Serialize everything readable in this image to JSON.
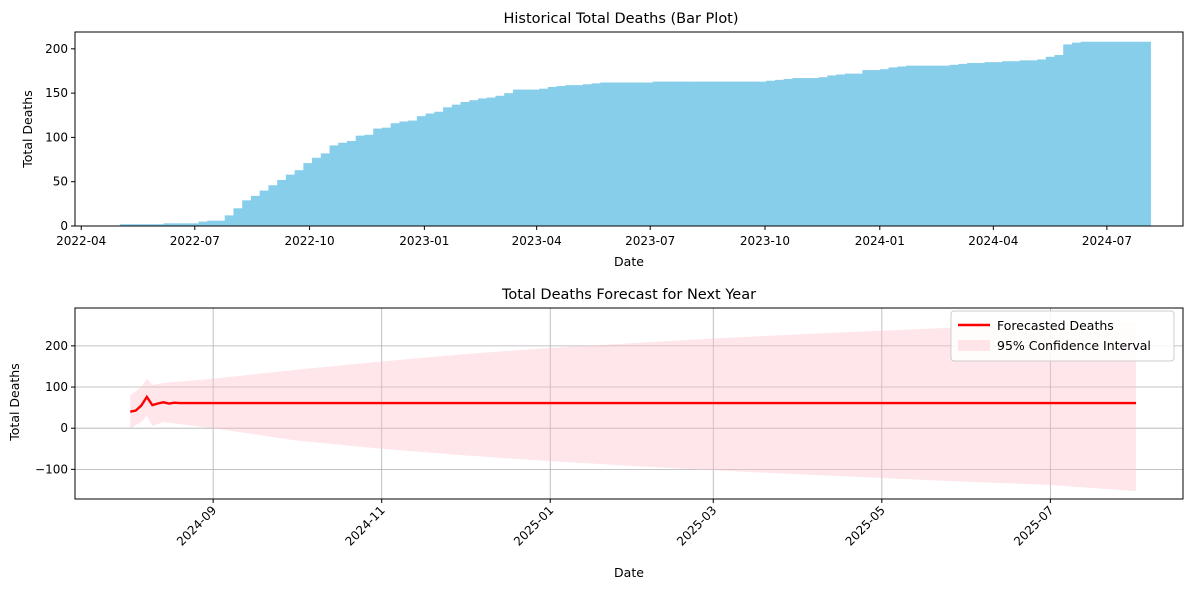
{
  "colors": {
    "bars": "#87ceeb",
    "forecast_line": "#ff0000",
    "confidence_band": "#ffc0cb",
    "grid": "#b0b0b0",
    "axes": "#000000"
  },
  "chart_data": [
    {
      "type": "bar",
      "title": "Historical Total Deaths (Bar Plot)",
      "xlabel": "Date",
      "ylabel": "Total Deaths",
      "x_tick_labels": [
        "2022-04",
        "2022-07",
        "2022-10",
        "2023-01",
        "2023-04",
        "2023-07",
        "2023-10",
        "2024-01",
        "2024-04",
        "2024-07"
      ],
      "y_ticks": [
        0,
        50,
        100,
        150,
        200
      ],
      "ylim": [
        0,
        219
      ],
      "grid": false,
      "bar_width_days": 7,
      "x_range": [
        "2022-03-27",
        "2024-08-31"
      ],
      "bars": [
        {
          "x": "2022-05-02",
          "y": 2
        },
        {
          "x": "2022-05-09",
          "y": 2
        },
        {
          "x": "2022-05-16",
          "y": 2
        },
        {
          "x": "2022-05-23",
          "y": 2
        },
        {
          "x": "2022-05-30",
          "y": 2
        },
        {
          "x": "2022-06-06",
          "y": 3
        },
        {
          "x": "2022-06-13",
          "y": 3
        },
        {
          "x": "2022-06-20",
          "y": 3
        },
        {
          "x": "2022-06-27",
          "y": 3
        },
        {
          "x": "2022-07-04",
          "y": 5
        },
        {
          "x": "2022-07-11",
          "y": 6
        },
        {
          "x": "2022-07-18",
          "y": 6
        },
        {
          "x": "2022-07-25",
          "y": 12
        },
        {
          "x": "2022-08-01",
          "y": 20
        },
        {
          "x": "2022-08-08",
          "y": 29
        },
        {
          "x": "2022-08-15",
          "y": 34
        },
        {
          "x": "2022-08-22",
          "y": 40
        },
        {
          "x": "2022-08-29",
          "y": 46
        },
        {
          "x": "2022-09-05",
          "y": 52
        },
        {
          "x": "2022-09-12",
          "y": 58
        },
        {
          "x": "2022-09-19",
          "y": 63
        },
        {
          "x": "2022-09-26",
          "y": 71
        },
        {
          "x": "2022-10-03",
          "y": 77
        },
        {
          "x": "2022-10-10",
          "y": 82
        },
        {
          "x": "2022-10-17",
          "y": 91
        },
        {
          "x": "2022-10-24",
          "y": 94
        },
        {
          "x": "2022-10-31",
          "y": 96
        },
        {
          "x": "2022-11-07",
          "y": 102
        },
        {
          "x": "2022-11-14",
          "y": 103
        },
        {
          "x": "2022-11-21",
          "y": 110
        },
        {
          "x": "2022-11-28",
          "y": 111
        },
        {
          "x": "2022-12-05",
          "y": 116
        },
        {
          "x": "2022-12-12",
          "y": 118
        },
        {
          "x": "2022-12-19",
          "y": 119
        },
        {
          "x": "2022-12-26",
          "y": 124
        },
        {
          "x": "2023-01-02",
          "y": 127
        },
        {
          "x": "2023-01-09",
          "y": 129
        },
        {
          "x": "2023-01-16",
          "y": 134
        },
        {
          "x": "2023-01-23",
          "y": 137
        },
        {
          "x": "2023-01-30",
          "y": 140
        },
        {
          "x": "2023-02-06",
          "y": 142
        },
        {
          "x": "2023-02-13",
          "y": 144
        },
        {
          "x": "2023-02-20",
          "y": 145
        },
        {
          "x": "2023-02-27",
          "y": 147
        },
        {
          "x": "2023-03-06",
          "y": 150
        },
        {
          "x": "2023-03-13",
          "y": 154
        },
        {
          "x": "2023-03-20",
          "y": 154
        },
        {
          "x": "2023-03-27",
          "y": 154
        },
        {
          "x": "2023-04-03",
          "y": 155
        },
        {
          "x": "2023-04-10",
          "y": 157
        },
        {
          "x": "2023-04-17",
          "y": 158
        },
        {
          "x": "2023-04-24",
          "y": 159
        },
        {
          "x": "2023-05-01",
          "y": 159
        },
        {
          "x": "2023-05-08",
          "y": 160
        },
        {
          "x": "2023-05-15",
          "y": 161
        },
        {
          "x": "2023-05-22",
          "y": 162
        },
        {
          "x": "2023-05-29",
          "y": 162
        },
        {
          "x": "2023-06-05",
          "y": 162
        },
        {
          "x": "2023-06-12",
          "y": 162
        },
        {
          "x": "2023-06-19",
          "y": 162
        },
        {
          "x": "2023-06-26",
          "y": 162
        },
        {
          "x": "2023-07-03",
          "y": 163
        },
        {
          "x": "2023-07-10",
          "y": 163
        },
        {
          "x": "2023-07-17",
          "y": 163
        },
        {
          "x": "2023-07-24",
          "y": 163
        },
        {
          "x": "2023-07-31",
          "y": 163
        },
        {
          "x": "2023-08-07",
          "y": 163
        },
        {
          "x": "2023-08-14",
          "y": 163
        },
        {
          "x": "2023-08-21",
          "y": 163
        },
        {
          "x": "2023-08-28",
          "y": 163
        },
        {
          "x": "2023-09-04",
          "y": 163
        },
        {
          "x": "2023-09-11",
          "y": 163
        },
        {
          "x": "2023-09-18",
          "y": 163
        },
        {
          "x": "2023-09-25",
          "y": 163
        },
        {
          "x": "2023-10-02",
          "y": 164
        },
        {
          "x": "2023-10-09",
          "y": 165
        },
        {
          "x": "2023-10-16",
          "y": 166
        },
        {
          "x": "2023-10-23",
          "y": 167
        },
        {
          "x": "2023-10-30",
          "y": 167
        },
        {
          "x": "2023-11-06",
          "y": 167
        },
        {
          "x": "2023-11-13",
          "y": 168
        },
        {
          "x": "2023-11-20",
          "y": 170
        },
        {
          "x": "2023-11-27",
          "y": 171
        },
        {
          "x": "2023-12-04",
          "y": 172
        },
        {
          "x": "2023-12-11",
          "y": 172
        },
        {
          "x": "2023-12-18",
          "y": 176
        },
        {
          "x": "2023-12-25",
          "y": 176
        },
        {
          "x": "2024-01-01",
          "y": 177
        },
        {
          "x": "2024-01-08",
          "y": 179
        },
        {
          "x": "2024-01-15",
          "y": 180
        },
        {
          "x": "2024-01-22",
          "y": 181
        },
        {
          "x": "2024-01-29",
          "y": 181
        },
        {
          "x": "2024-02-05",
          "y": 181
        },
        {
          "x": "2024-02-12",
          "y": 181
        },
        {
          "x": "2024-02-19",
          "y": 181
        },
        {
          "x": "2024-02-26",
          "y": 182
        },
        {
          "x": "2024-03-04",
          "y": 183
        },
        {
          "x": "2024-03-11",
          "y": 184
        },
        {
          "x": "2024-03-18",
          "y": 184
        },
        {
          "x": "2024-03-25",
          "y": 185
        },
        {
          "x": "2024-04-01",
          "y": 185
        },
        {
          "x": "2024-04-08",
          "y": 186
        },
        {
          "x": "2024-04-15",
          "y": 186
        },
        {
          "x": "2024-04-22",
          "y": 187
        },
        {
          "x": "2024-04-29",
          "y": 187
        },
        {
          "x": "2024-05-06",
          "y": 188
        },
        {
          "x": "2024-05-13",
          "y": 191
        },
        {
          "x": "2024-05-20",
          "y": 193
        },
        {
          "x": "2024-05-27",
          "y": 205
        },
        {
          "x": "2024-06-03",
          "y": 207
        },
        {
          "x": "2024-06-10",
          "y": 208
        },
        {
          "x": "2024-06-17",
          "y": 208
        },
        {
          "x": "2024-06-24",
          "y": 208
        },
        {
          "x": "2024-07-01",
          "y": 208
        },
        {
          "x": "2024-07-08",
          "y": 208
        },
        {
          "x": "2024-07-15",
          "y": 208
        },
        {
          "x": "2024-07-22",
          "y": 208
        },
        {
          "x": "2024-07-29",
          "y": 208
        }
      ]
    },
    {
      "type": "line",
      "title": "Total Deaths Forecast for Next Year",
      "xlabel": "Date",
      "ylabel": "Total Deaths",
      "x_tick_labels": [
        "2024-09",
        "2024-11",
        "2025-01",
        "2025-03",
        "2025-05",
        "2025-07"
      ],
      "y_ticks": [
        -100,
        0,
        100,
        200
      ],
      "ylim": [
        -172,
        292
      ],
      "x_range": [
        "2024-07-13",
        "2025-08-18"
      ],
      "grid": true,
      "legend_position": "top-right",
      "legend": [
        "Forecasted Deaths",
        "95% Confidence Interval"
      ],
      "series": [
        {
          "name": "Forecasted Deaths",
          "x": [
            "2024-08-02",
            "2024-08-04",
            "2024-08-06",
            "2024-08-08",
            "2024-08-10",
            "2024-08-12",
            "2024-08-14",
            "2024-08-16",
            "2024-08-18",
            "2024-08-20",
            "2024-08-22",
            "2024-08-24",
            "2025-08-01"
          ],
          "y": [
            40,
            43,
            55,
            76,
            56,
            60,
            63,
            60,
            62,
            61,
            61,
            61,
            61
          ]
        }
      ],
      "confidence_interval": {
        "name": "95% Confidence Interval",
        "x": [
          "2024-08-02",
          "2024-08-06",
          "2024-08-08",
          "2024-08-10",
          "2024-08-14",
          "2024-08-20",
          "2024-09-01",
          "2024-10-01",
          "2024-11-01",
          "2024-12-01",
          "2025-01-01",
          "2025-02-01",
          "2025-03-01",
          "2025-04-01",
          "2025-05-01",
          "2025-06-01",
          "2025-07-01",
          "2025-08-01"
        ],
        "lower": [
          0,
          15,
          30,
          5,
          15,
          10,
          0,
          -30,
          -50,
          -66,
          -80,
          -92,
          -102,
          -112,
          -121,
          -130,
          -138,
          -153
        ],
        "upper": [
          80,
          100,
          120,
          105,
          110,
          113,
          120,
          142,
          162,
          180,
          195,
          207,
          218,
          228,
          237,
          246,
          254,
          258
        ]
      }
    }
  ]
}
